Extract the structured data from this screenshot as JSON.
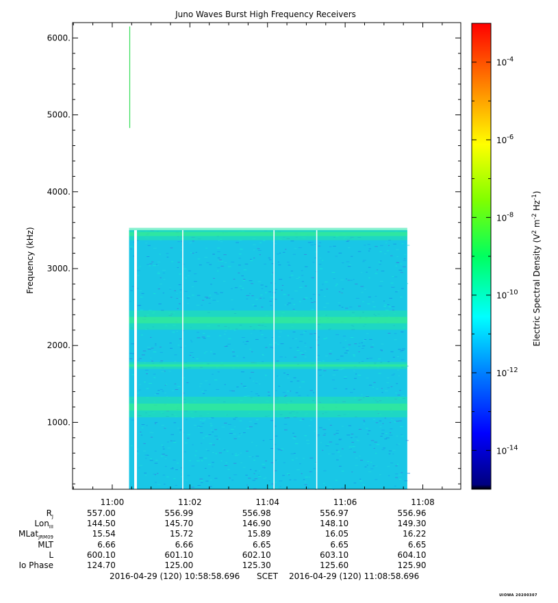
{
  "chart_data": {
    "type": "heatmap",
    "title": "Juno Waves Burst High Frequency Receivers",
    "ylabel": "Frequency (kHz)",
    "ylim": [
      130,
      6200
    ],
    "y_ticks": [
      1000,
      2000,
      3000,
      4000,
      5000,
      6000
    ],
    "y_tick_labels": [
      "1000.",
      "2000.",
      "3000.",
      "4000.",
      "5000.",
      "6000."
    ],
    "x_ticks": [
      "11:00",
      "11:02",
      "11:04",
      "11:06",
      "11:08"
    ],
    "x_range": [
      "2016-04-29 10:58:58.696",
      "2016-04-29 11:08:58.696"
    ],
    "colorbar": {
      "label": "Electric Spectral Density (V^2 m^-2 Hz^-1)",
      "scale": "log",
      "range": [
        1e-15,
        0.001
      ],
      "tick_exponents": [
        -14,
        -12,
        -10,
        -8,
        -6,
        -4
      ]
    },
    "features": {
      "data_block": {
        "t_start": "11:00:26",
        "t_end": "11:07:36",
        "freq_min_kHz": 130,
        "freq_max_kHz": 3500,
        "background_density": "~1e-12"
      },
      "enhanced_bands_kHz": [
        1200,
        1740,
        2330,
        3450
      ],
      "data_gaps": [
        "11:00:36",
        "11:01:49",
        "11:04:10",
        "11:05:16"
      ],
      "spike": {
        "time": "11:00:26",
        "freq_min_kHz": 4830,
        "freq_max_kHz": 6150,
        "density": "~1e-9"
      }
    }
  },
  "ephemeris": {
    "rows": [
      {
        "label": "R",
        "sub": "J",
        "values": [
          "557.00",
          "556.99",
          "556.98",
          "556.97",
          "556.96"
        ]
      },
      {
        "label": "Lon",
        "sub": "III",
        "values": [
          "144.50",
          "145.70",
          "146.90",
          "148.10",
          "149.30"
        ]
      },
      {
        "label": "MLat",
        "sub": "JRM09",
        "values": [
          "15.54",
          "15.72",
          "15.89",
          "16.05",
          "16.22"
        ]
      },
      {
        "label": "MLT",
        "sub": "",
        "values": [
          "6.66",
          "6.66",
          "6.65",
          "6.65",
          "6.65"
        ]
      },
      {
        "label": "L",
        "sub": "",
        "values": [
          "600.10",
          "601.10",
          "602.10",
          "603.10",
          "604.10"
        ]
      },
      {
        "label": "Io Phase",
        "sub": "",
        "values": [
          "124.70",
          "125.00",
          "125.30",
          "125.60",
          "125.90"
        ]
      }
    ]
  },
  "footer": {
    "start": "2016-04-29 (120) 10:58:58.696",
    "frame": "SCET",
    "end": "2016-04-29 (120) 11:08:58.696"
  },
  "stamp": "UIOWA 20200307"
}
